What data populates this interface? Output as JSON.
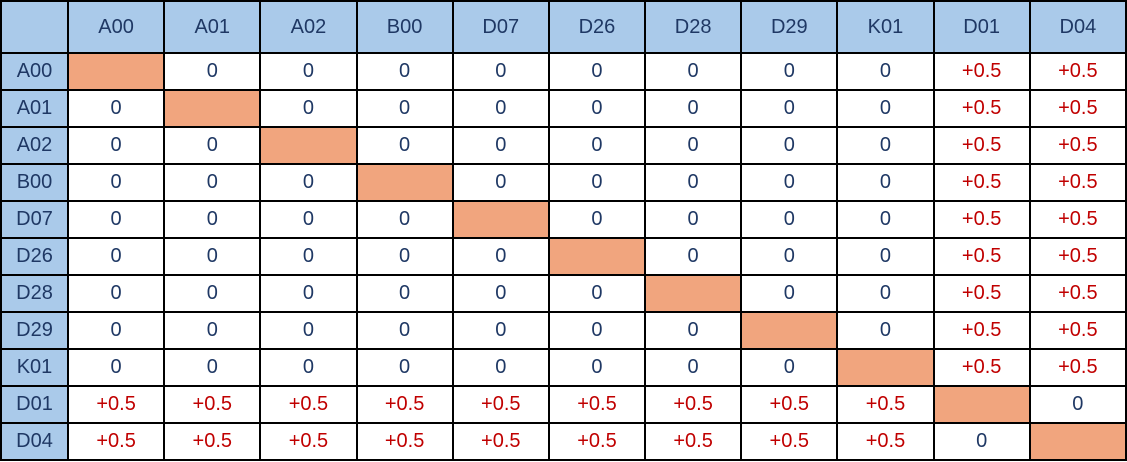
{
  "chart_data": {
    "type": "table",
    "title": "",
    "description_visible": false,
    "corner_label": "",
    "column_headers": [
      "A00",
      "A01",
      "A02",
      "B00",
      "D07",
      "D26",
      "D28",
      "D29",
      "K01",
      "D01",
      "D04"
    ],
    "row_headers": [
      "A00",
      "A01",
      "A02",
      "B00",
      "D07",
      "D26",
      "D28",
      "D29",
      "K01",
      "D01",
      "D04"
    ],
    "cells": [
      [
        null,
        "0",
        "0",
        "0",
        "0",
        "0",
        "0",
        "0",
        "0",
        "+0.5",
        "+0.5"
      ],
      [
        "0",
        null,
        "0",
        "0",
        "0",
        "0",
        "0",
        "0",
        "0",
        "+0.5",
        "+0.5"
      ],
      [
        "0",
        "0",
        null,
        "0",
        "0",
        "0",
        "0",
        "0",
        "0",
        "+0.5",
        "+0.5"
      ],
      [
        "0",
        "0",
        "0",
        null,
        "0",
        "0",
        "0",
        "0",
        "0",
        "+0.5",
        "+0.5"
      ],
      [
        "0",
        "0",
        "0",
        "0",
        null,
        "0",
        "0",
        "0",
        "0",
        "+0.5",
        "+0.5"
      ],
      [
        "0",
        "0",
        "0",
        "0",
        "0",
        null,
        "0",
        "0",
        "0",
        "+0.5",
        "+0.5"
      ],
      [
        "0",
        "0",
        "0",
        "0",
        "0",
        "0",
        null,
        "0",
        "0",
        "+0.5",
        "+0.5"
      ],
      [
        "0",
        "0",
        "0",
        "0",
        "0",
        "0",
        "0",
        null,
        "0",
        "+0.5",
        "+0.5"
      ],
      [
        "0",
        "0",
        "0",
        "0",
        "0",
        "0",
        "0",
        "0",
        null,
        "+0.5",
        "+0.5"
      ],
      [
        "+0.5",
        "+0.5",
        "+0.5",
        "+0.5",
        "+0.5",
        "+0.5",
        "+0.5",
        "+0.5",
        "+0.5",
        null,
        "0"
      ],
      [
        "+0.5",
        "+0.5",
        "+0.5",
        "+0.5",
        "+0.5",
        "+0.5",
        "+0.5",
        "+0.5",
        "+0.5",
        "0",
        null
      ]
    ],
    "diagonal_cells": "filled, no text",
    "grid": true,
    "legend_position": "none"
  },
  "colors": {
    "header_bg": "#AACAEA",
    "diagonal_fill": "#F1A57E",
    "zero_value_color": "#1F3864",
    "positive_value_color": "#C00000",
    "border_color": "#000000",
    "cell_bg": "#FFFFFF"
  }
}
